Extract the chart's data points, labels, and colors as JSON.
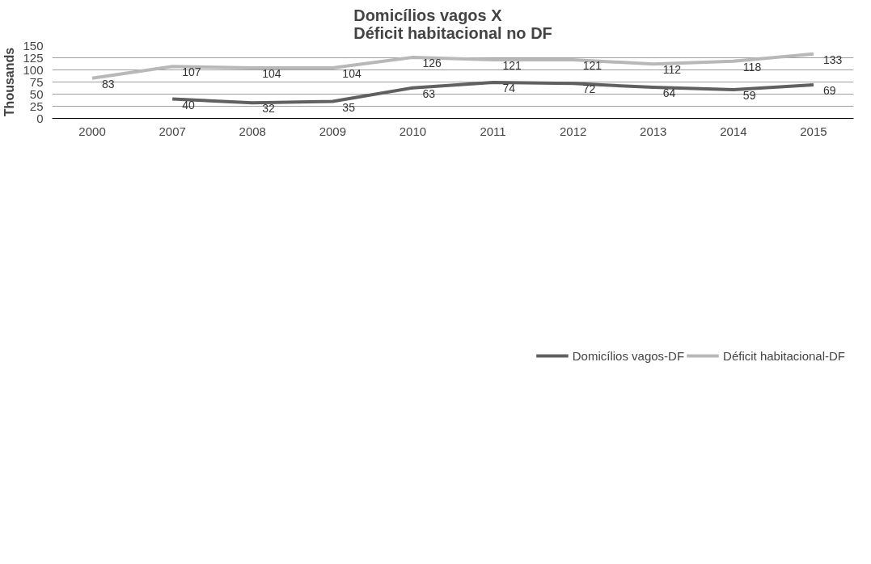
{
  "chart_data": {
    "type": "line",
    "title": "Domicílios vagos X\nDéficit habitacional no DF",
    "ylabel": "Thousands",
    "categories": [
      "2000",
      "2007",
      "2008",
      "2009",
      "2010",
      "2011",
      "2012",
      "2013",
      "2014",
      "2015"
    ],
    "series": [
      {
        "name": "Domicílios vagos-DF",
        "color": "#606060",
        "values": [
          null,
          40,
          32,
          35,
          63,
          74,
          72,
          64,
          59,
          69
        ]
      },
      {
        "name": "Déficit habitacional-DF",
        "color": "#b8b8b8",
        "values": [
          83,
          107,
          104,
          104,
          126,
          121,
          121,
          112,
          118,
          133
        ]
      }
    ],
    "ylim": [
      0,
      150
    ],
    "yticks": [
      0,
      25,
      50,
      75,
      100,
      125,
      150
    ],
    "grid": "y",
    "legend": "bottom",
    "data_labels": true,
    "marker": "none",
    "line_style": "solid"
  }
}
